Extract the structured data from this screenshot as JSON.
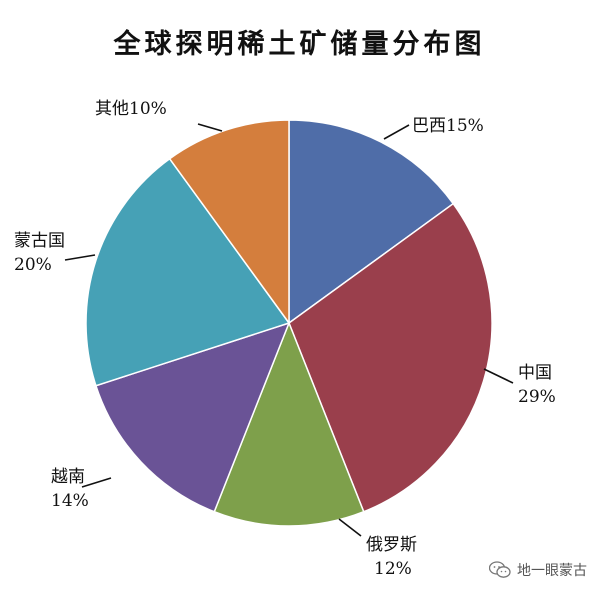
{
  "chart_data": {
    "type": "pie",
    "title": "全球探明稀土矿储量分布图",
    "slices": [
      {
        "name": "巴西",
        "value": 15,
        "label": "巴西15%",
        "color": "#4f6da8"
      },
      {
        "name": "中国",
        "value": 29,
        "label_lines": [
          "中国",
          "29%"
        ],
        "color": "#9a3f4c"
      },
      {
        "name": "俄罗斯",
        "value": 12,
        "label_lines": [
          "俄罗斯",
          "12%"
        ],
        "color": "#7ea04b"
      },
      {
        "name": "越南",
        "value": 14,
        "label_lines": [
          "越南",
          "14%"
        ],
        "color": "#6a5396"
      },
      {
        "name": "蒙古国",
        "value": 20,
        "label_lines": [
          "蒙古国",
          "20%"
        ],
        "color": "#46a1b6"
      },
      {
        "name": "其他",
        "value": 10,
        "label": "其他10%",
        "color": "#d47e3d"
      }
    ]
  },
  "watermark": {
    "text": "地一眼蒙古",
    "icon": "wechat-icon"
  }
}
